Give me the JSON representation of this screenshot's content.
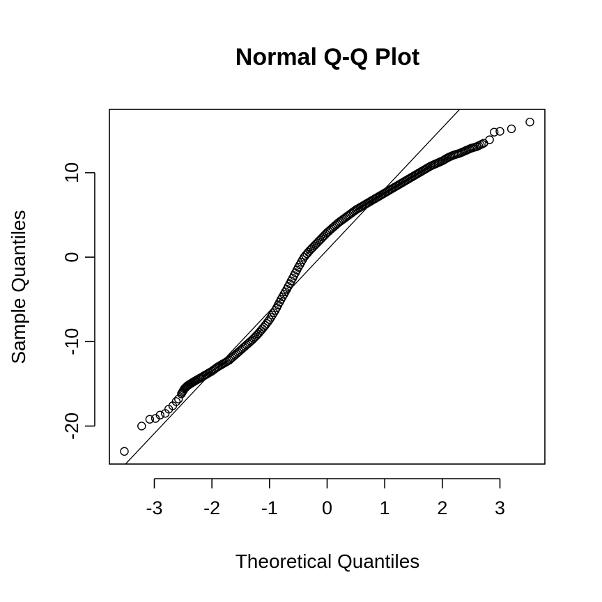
{
  "chart_data": {
    "type": "scatter",
    "title": "Normal Q-Q Plot",
    "xlabel": "Theoretical Quantiles",
    "ylabel": "Sample Quantiles",
    "xlim": [
      -3.78,
      3.78
    ],
    "ylim": [
      -24.5,
      17.5
    ],
    "x_ticks": [
      -3,
      -2,
      -1,
      0,
      1,
      2,
      3
    ],
    "y_ticks": [
      -20,
      -10,
      0,
      10
    ],
    "grid": false,
    "legend": "none",
    "reference_line": {
      "x1": -3.5,
      "y1": -24.5,
      "x2": 2.3,
      "y2": 17.5
    },
    "series": [
      {
        "marker": "open-circle",
        "points": [
          [
            -3.52,
            -23.0
          ],
          [
            -3.22,
            -20.0
          ],
          [
            -3.08,
            -19.2
          ],
          [
            -2.98,
            -19.1
          ],
          [
            -2.9,
            -18.7
          ],
          [
            -2.81,
            -18.5
          ],
          [
            -2.75,
            -18.0
          ],
          [
            -2.68,
            -17.6
          ],
          [
            -2.62,
            -17.1
          ],
          [
            -2.58,
            -16.8
          ],
          [
            -2.53,
            -16.2
          ],
          [
            -2.48,
            -15.6
          ],
          [
            -2.42,
            -15.2
          ],
          [
            -2.35,
            -14.9
          ],
          [
            -2.28,
            -14.6
          ],
          [
            -2.2,
            -14.3
          ],
          [
            -2.1,
            -13.9
          ],
          [
            -2.0,
            -13.5
          ],
          [
            -1.9,
            -13.0
          ],
          [
            -1.8,
            -12.6
          ],
          [
            -1.7,
            -12.2
          ],
          [
            -1.6,
            -11.6
          ],
          [
            -1.5,
            -11.0
          ],
          [
            -1.4,
            -10.4
          ],
          [
            -1.3,
            -9.8
          ],
          [
            -1.2,
            -9.1
          ],
          [
            -1.1,
            -8.3
          ],
          [
            -1.0,
            -7.4
          ],
          [
            -0.9,
            -6.3
          ],
          [
            -0.8,
            -5.0
          ],
          [
            -0.7,
            -3.8
          ],
          [
            -0.6,
            -2.5
          ],
          [
            -0.5,
            -1.2
          ],
          [
            -0.4,
            0.0
          ],
          [
            -0.3,
            0.8
          ],
          [
            -0.2,
            1.5
          ],
          [
            -0.1,
            2.2
          ],
          [
            0.0,
            2.9
          ],
          [
            0.1,
            3.5
          ],
          [
            0.2,
            4.1
          ],
          [
            0.3,
            4.6
          ],
          [
            0.4,
            5.1
          ],
          [
            0.5,
            5.6
          ],
          [
            0.6,
            6.0
          ],
          [
            0.7,
            6.4
          ],
          [
            0.8,
            6.8
          ],
          [
            0.9,
            7.2
          ],
          [
            1.0,
            7.6
          ],
          [
            1.1,
            8.0
          ],
          [
            1.2,
            8.4
          ],
          [
            1.3,
            8.8
          ],
          [
            1.4,
            9.2
          ],
          [
            1.5,
            9.6
          ],
          [
            1.6,
            10.0
          ],
          [
            1.7,
            10.4
          ],
          [
            1.8,
            10.8
          ],
          [
            1.9,
            11.1
          ],
          [
            2.0,
            11.4
          ],
          [
            2.1,
            11.8
          ],
          [
            2.2,
            12.1
          ],
          [
            2.3,
            12.3
          ],
          [
            2.4,
            12.6
          ],
          [
            2.5,
            12.9
          ],
          [
            2.6,
            13.1
          ],
          [
            2.72,
            13.5
          ],
          [
            2.82,
            13.9
          ],
          [
            2.9,
            14.8
          ],
          [
            3.0,
            14.9
          ],
          [
            3.2,
            15.2
          ],
          [
            3.52,
            16.0
          ]
        ]
      }
    ]
  }
}
